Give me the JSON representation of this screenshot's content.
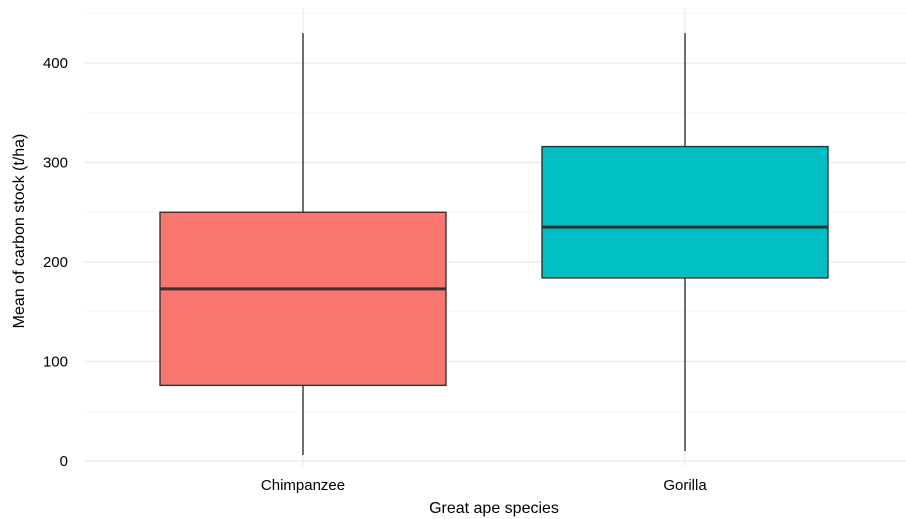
{
  "chart_data": {
    "type": "boxplot",
    "xlabel": "Great ape species",
    "ylabel": "Mean of carbon stock (t/ha)",
    "categories": [
      "Chimpanzee",
      "Gorilla"
    ],
    "boxes": [
      {
        "category": "Chimpanzee",
        "min": 6,
        "q1": 76,
        "median": 173,
        "q3": 250,
        "max": 430,
        "color": "#F8766D"
      },
      {
        "category": "Gorilla",
        "min": 10,
        "q1": 184,
        "median": 235,
        "q3": 316,
        "max": 430,
        "color": "#00BFC4"
      }
    ],
    "ylim": [
      -5,
      450
    ],
    "y_ticks": [
      0,
      100,
      200,
      300,
      400
    ],
    "y_tick_labels": [
      "0",
      "100",
      "200",
      "300",
      "400"
    ],
    "y_minor_ticks": [
      50,
      150,
      250,
      350,
      450
    ],
    "grid": true,
    "legend": "none"
  }
}
